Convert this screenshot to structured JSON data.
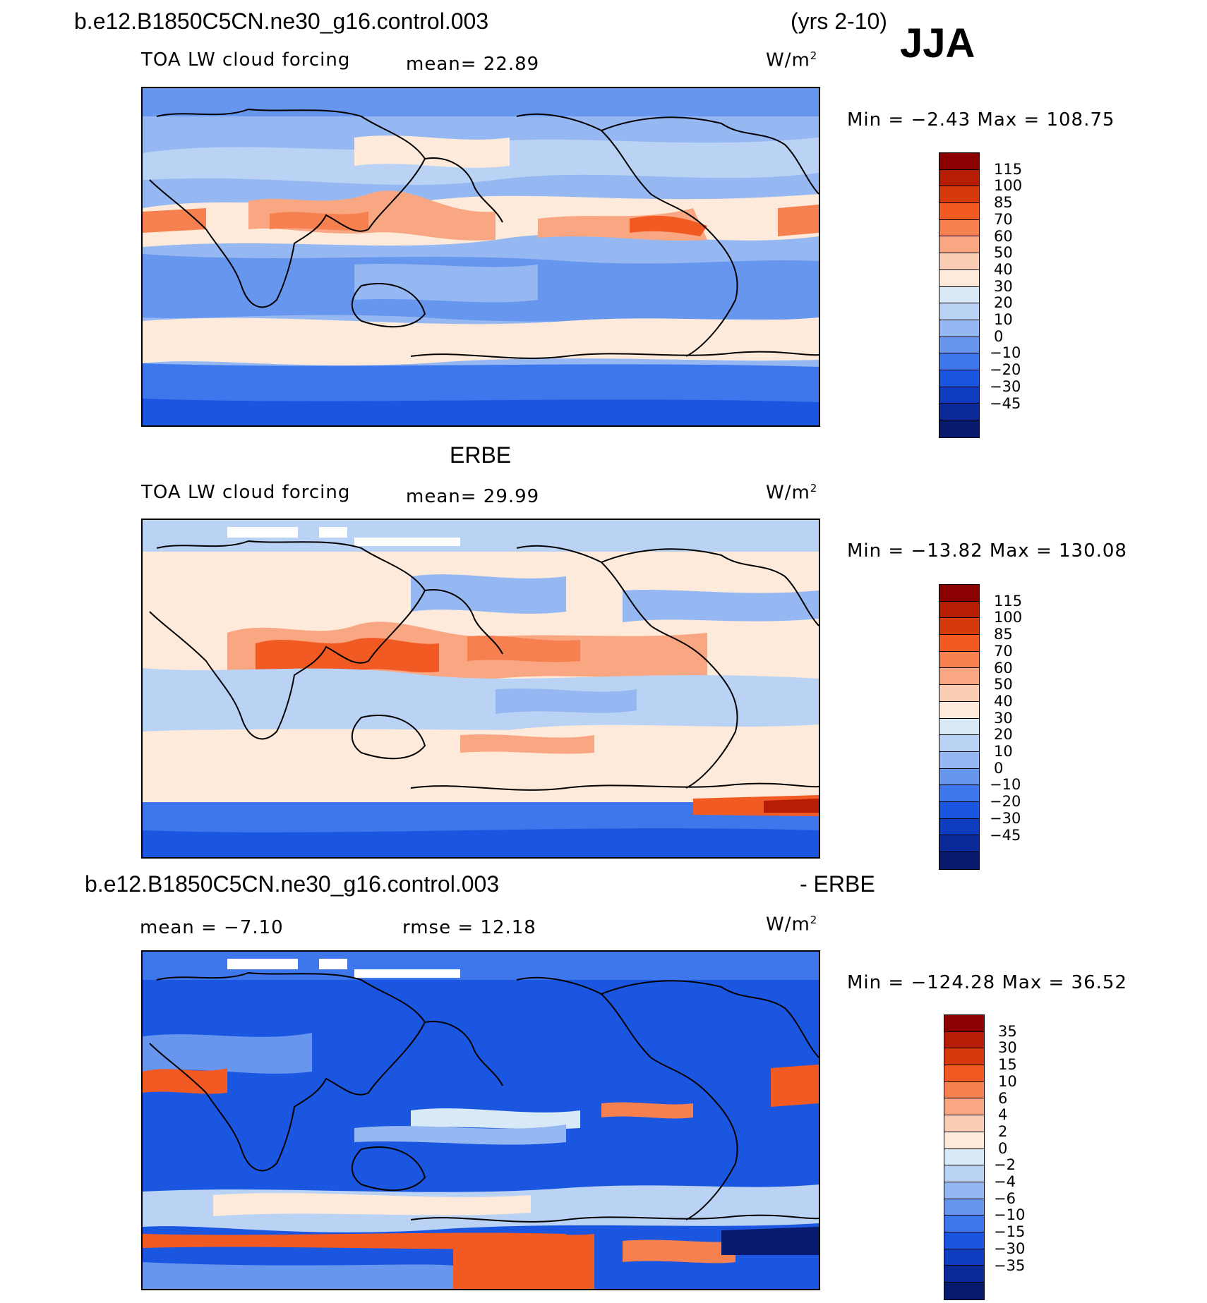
{
  "figure": {
    "case_title": "b.e12.B1850C5CN.ne30_g16.control.003",
    "years": "(yrs 2-10)",
    "season": "JJA"
  },
  "panels": [
    {
      "title": "b.e12.B1850C5CN.ne30_g16.control.003",
      "variable": "TOA LW cloud forcing",
      "stat1": "mean=   22.89",
      "stat2": "",
      "units": "W/m",
      "units_sup": "2",
      "minmax": "Min =   −2.43  Max =  108.75",
      "colorbar_labels": [
        "115",
        "100",
        "85",
        "70",
        "60",
        "50",
        "40",
        "30",
        "20",
        "10",
        "0",
        "−10",
        "−20",
        "−30",
        "−45"
      ],
      "colorbar_colors": [
        "#8b0000",
        "#b51d05",
        "#d63a0c",
        "#f15a22",
        "#f6804f",
        "#f9a682",
        "#fbcdb4",
        "#fdeadb",
        "#d8e9f8",
        "#bad3f5",
        "#95b8f2",
        "#6796ee",
        "#3e76ec",
        "#1a56e0",
        "#0e3ebf",
        "#0b2a99",
        "#071a6e"
      ]
    },
    {
      "title": "ERBE",
      "variable": "TOA LW cloud forcing",
      "stat1": "mean=   29.99",
      "stat2": "",
      "units": "W/m",
      "units_sup": "2",
      "minmax": "Min = −13.82  Max =  130.08",
      "colorbar_labels": [
        "115",
        "100",
        "85",
        "70",
        "60",
        "50",
        "40",
        "30",
        "20",
        "10",
        "0",
        "−10",
        "−20",
        "−30",
        "−45"
      ],
      "colorbar_colors": [
        "#8b0000",
        "#b51d05",
        "#d63a0c",
        "#f15a22",
        "#f6804f",
        "#f9a682",
        "#fbcdb4",
        "#fdeadb",
        "#d8e9f8",
        "#bad3f5",
        "#95b8f2",
        "#6796ee",
        "#3e76ec",
        "#1a56e0",
        "#0e3ebf",
        "#0b2a99",
        "#071a6e"
      ]
    },
    {
      "title": "b.e12.B1850C5CN.ne30_g16.control.003",
      "title_right": "- ERBE",
      "variable": "",
      "stat1": "mean =   −7.10",
      "stat2": "rmse =   12.18",
      "units": "W/m",
      "units_sup": "2",
      "minmax": "Min = −124.28  Max =   36.52",
      "colorbar_labels": [
        "35",
        "30",
        "15",
        "10",
        "6",
        "4",
        "2",
        "0",
        "−2",
        "−4",
        "−6",
        "−10",
        "−15",
        "−30",
        "−35"
      ],
      "colorbar_colors": [
        "#8b0000",
        "#b51d05",
        "#d63a0c",
        "#f15a22",
        "#f6804f",
        "#f9a682",
        "#fbcdb4",
        "#fdeadb",
        "#d8e9f8",
        "#bad3f5",
        "#95b8f2",
        "#6796ee",
        "#3e76ec",
        "#1a56e0",
        "#0e3ebf",
        "#0b2a99",
        "#071a6e"
      ]
    }
  ]
}
